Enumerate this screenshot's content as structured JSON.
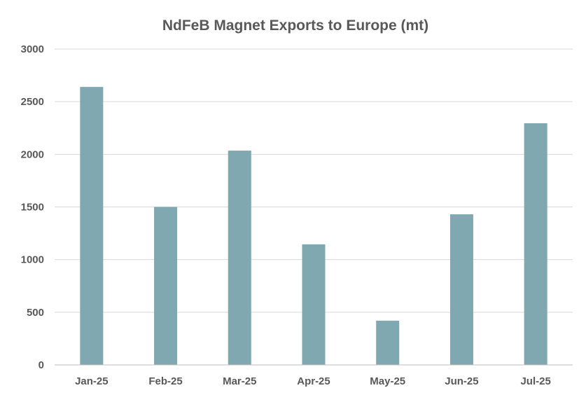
{
  "chart_data": {
    "type": "bar",
    "title": "NdFeB Magnet Exports to Europe (mt)",
    "xlabel": "",
    "ylabel": "",
    "categories": [
      "Jan-25",
      "Feb-25",
      "Mar-25",
      "Apr-25",
      "May-25",
      "Jun-25",
      "Jul-25"
    ],
    "values": [
      2640,
      1500,
      2035,
      1145,
      420,
      1430,
      2295
    ],
    "ylim": [
      0,
      3000
    ],
    "yticks": [
      0,
      500,
      1000,
      1500,
      2000,
      2500,
      3000
    ],
    "grid": true,
    "legend": "none",
    "bar_color": "#7fa8b0"
  }
}
